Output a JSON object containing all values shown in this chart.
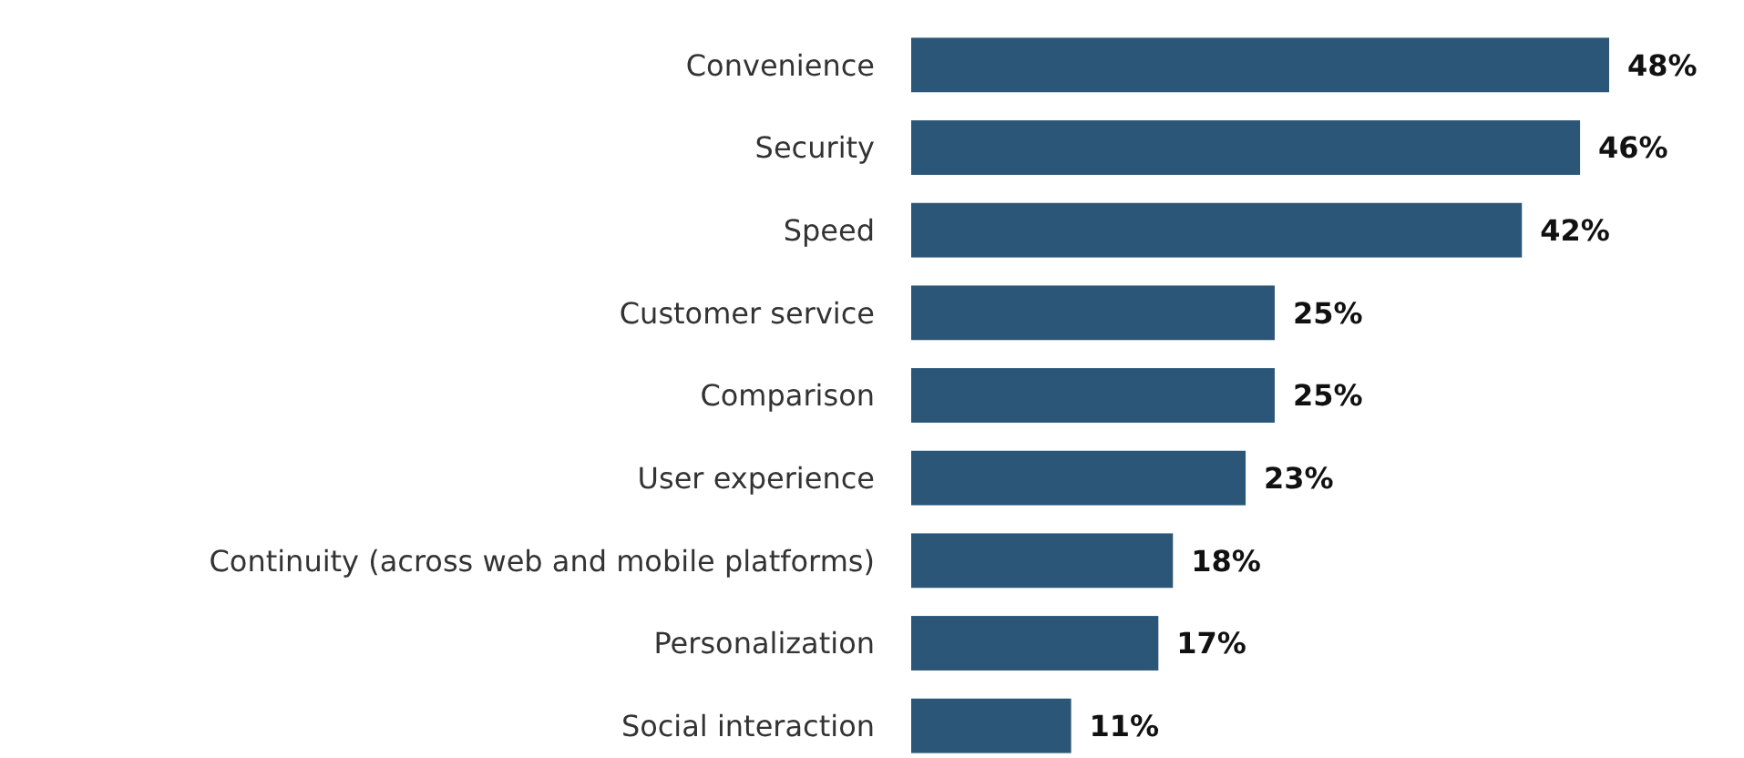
{
  "chart_data": {
    "type": "bar",
    "orientation": "horizontal",
    "categories": [
      "Convenience",
      "Security",
      "Speed",
      "Customer service",
      "Comparison",
      "User experience",
      "Continuity (across web and mobile platforms)",
      "Personalization",
      "Social interaction"
    ],
    "values": [
      48,
      46,
      42,
      25,
      25,
      23,
      18,
      17,
      11
    ],
    "value_labels": [
      "48%",
      "46%",
      "42%",
      "25%",
      "25%",
      "23%",
      "18%",
      "17%",
      "11%"
    ],
    "color": "#2b5678"
  }
}
